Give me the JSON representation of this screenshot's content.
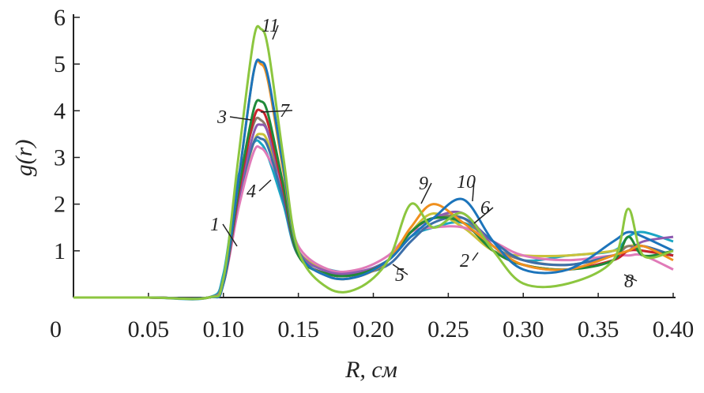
{
  "chart_data": {
    "type": "line",
    "xlabel": "R, см",
    "ylabel": "g(r)",
    "x": [
      0,
      0.05,
      0.09,
      0.1,
      0.11,
      0.12,
      0.125,
      0.13,
      0.14,
      0.15,
      0.17,
      0.19,
      0.21,
      0.225,
      0.24,
      0.26,
      0.28,
      0.3,
      0.33,
      0.36,
      0.37,
      0.38,
      0.4
    ],
    "xlim": [
      0,
      0.4
    ],
    "xticks": [
      0,
      0.05,
      {
        "value": 0.1,
        "label": "0.10"
      },
      0.15,
      {
        "value": 0.2,
        "label": "0.20"
      },
      0.25,
      {
        "value": 0.3,
        "label": "0.30"
      },
      0.35,
      {
        "value": 0.4,
        "label": "0.40"
      }
    ],
    "ylim": [
      0,
      6
    ],
    "yticks": [
      1,
      2,
      3,
      4,
      5,
      6
    ],
    "series": [
      {
        "name": "1",
        "color": "#1aa6c4",
        "values": [
          0,
          0,
          0,
          0.5,
          2.6,
          3.3,
          3.3,
          3.0,
          2.0,
          0.9,
          0.6,
          0.55,
          0.8,
          1.3,
          1.5,
          1.6,
          1.2,
          0.8,
          0.9,
          1.0,
          1.3,
          1.4,
          1.2
        ]
      },
      {
        "name": "2",
        "color": "#c9c23a",
        "values": [
          0,
          0,
          0,
          0.3,
          2.0,
          3.3,
          3.5,
          3.3,
          2.2,
          1.0,
          0.6,
          0.5,
          0.8,
          1.4,
          1.8,
          1.5,
          1.0,
          0.9,
          0.9,
          1.0,
          1.1,
          1.1,
          0.9
        ]
      },
      {
        "name": "3",
        "color": "#8a7a6a",
        "values": [
          0,
          0,
          0,
          0.4,
          2.4,
          3.7,
          3.8,
          3.5,
          2.2,
          0.9,
          0.5,
          0.5,
          0.8,
          1.4,
          1.7,
          1.7,
          1.1,
          0.8,
          0.7,
          0.9,
          1.1,
          1.0,
          0.9
        ]
      },
      {
        "name": "4",
        "color": "#e07ab8",
        "values": [
          0,
          0,
          0,
          0.3,
          1.9,
          3.1,
          3.2,
          3.0,
          2.3,
          1.1,
          0.6,
          0.6,
          0.9,
          1.4,
          1.5,
          1.5,
          1.2,
          0.9,
          0.8,
          0.9,
          0.9,
          0.9,
          0.6
        ]
      },
      {
        "name": "5",
        "color": "#3d6fa8",
        "values": [
          0,
          0,
          0,
          0.3,
          2.1,
          3.3,
          3.4,
          3.2,
          2.1,
          0.9,
          0.5,
          0.5,
          0.7,
          1.2,
          1.6,
          1.7,
          1.2,
          0.8,
          0.7,
          0.9,
          1.0,
          1.1,
          0.9
        ]
      },
      {
        "name": "6",
        "color": "#8e5ab0",
        "values": [
          0,
          0,
          0,
          0.3,
          2.1,
          3.5,
          3.7,
          3.5,
          2.3,
          1.0,
          0.55,
          0.55,
          0.8,
          1.4,
          1.7,
          1.8,
          1.1,
          0.7,
          0.6,
          0.9,
          1.0,
          1.2,
          1.3
        ]
      },
      {
        "name": "7",
        "color": "#c8232c",
        "values": [
          0,
          0,
          0,
          0.3,
          2.2,
          3.8,
          4.0,
          3.7,
          2.3,
          0.9,
          0.5,
          0.5,
          0.8,
          1.4,
          1.7,
          1.6,
          1.0,
          0.7,
          0.6,
          0.8,
          1.0,
          1.0,
          0.9
        ]
      },
      {
        "name": "8",
        "color": "#1f8a3a",
        "values": [
          0,
          0,
          0,
          0.3,
          2.3,
          4.0,
          4.2,
          3.9,
          2.4,
          0.9,
          0.5,
          0.5,
          0.8,
          1.4,
          1.7,
          1.6,
          1.0,
          0.7,
          0.6,
          0.8,
          1.3,
          0.9,
          1.0
        ]
      },
      {
        "name": "9",
        "color": "#f0901e",
        "values": [
          0,
          0,
          0,
          0.3,
          2.5,
          4.8,
          5.0,
          4.6,
          2.7,
          1.0,
          0.45,
          0.45,
          0.8,
          1.5,
          2.0,
          1.6,
          1.1,
          0.7,
          0.6,
          0.9,
          1.0,
          1.1,
          0.8
        ]
      },
      {
        "name": "10",
        "color": "#1c74bb",
        "values": [
          0,
          0,
          0,
          0.3,
          2.5,
          4.8,
          5.05,
          4.7,
          2.8,
          1.0,
          0.45,
          0.45,
          0.8,
          1.3,
          1.7,
          2.1,
          1.2,
          0.6,
          0.6,
          1.2,
          1.4,
          1.3,
          1.0
        ]
      },
      {
        "name": "11",
        "color": "#8cc63f",
        "values": [
          0,
          0,
          0,
          0.4,
          3.0,
          5.5,
          5.75,
          5.3,
          3.0,
          1.0,
          0.2,
          0.2,
          0.8,
          2.0,
          1.5,
          1.8,
          1.0,
          0.3,
          0.3,
          0.8,
          1.9,
          0.9,
          1.0
        ]
      }
    ]
  }
}
